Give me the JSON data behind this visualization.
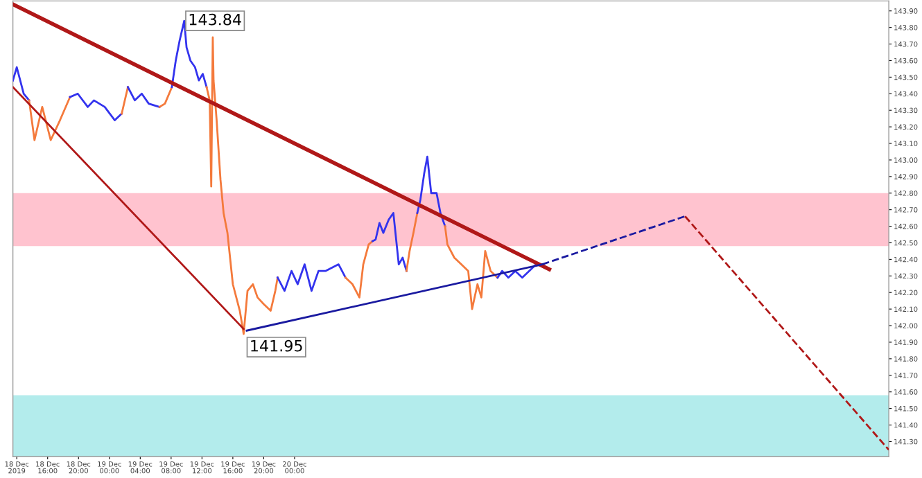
{
  "chart_data": {
    "type": "line",
    "xlim": [
      "2019-12-18T11:30",
      "2019-12-23T05:00"
    ],
    "ylim": [
      141.21,
      143.96
    ],
    "xticks": [
      {
        "value": "2019-12-18T12:00",
        "label": "18 Dec 2019"
      },
      {
        "value": "2019-12-18T16:00",
        "label": "18 Dec 16:00"
      },
      {
        "value": "2019-12-18T20:00",
        "label": "18 Dec 20:00"
      },
      {
        "value": "2019-12-19T00:00",
        "label": "19 Dec 00:00"
      },
      {
        "value": "2019-12-19T04:00",
        "label": "19 Dec 04:00"
      },
      {
        "value": "2019-12-19T08:00",
        "label": "19 Dec 08:00"
      },
      {
        "value": "2019-12-19T12:00",
        "label": "19 Dec 12:00"
      },
      {
        "value": "2019-12-19T16:00",
        "label": "19 Dec 16:00"
      },
      {
        "value": "2019-12-19T20:00",
        "label": "19 Dec 20:00"
      },
      {
        "value": "2019-12-20T00:00",
        "label": "20 Dec 00:00"
      }
    ],
    "yticks": [
      {
        "value": 141.3,
        "label": "141.30"
      },
      {
        "value": 141.4,
        "label": "141.40"
      },
      {
        "value": 141.5,
        "label": "141.50"
      },
      {
        "value": 141.6,
        "label": "141.60"
      },
      {
        "value": 141.7,
        "label": "141.70"
      },
      {
        "value": 141.8,
        "label": "141.80"
      },
      {
        "value": 141.9,
        "label": "141.90"
      },
      {
        "value": 142.0,
        "label": "142.00"
      },
      {
        "value": 142.1,
        "label": "142.10"
      },
      {
        "value": 142.2,
        "label": "142.20"
      },
      {
        "value": 142.3,
        "label": "142.30"
      },
      {
        "value": 142.4,
        "label": "142.40"
      },
      {
        "value": 142.5,
        "label": "142.50"
      },
      {
        "value": 142.6,
        "label": "142.60"
      },
      {
        "value": 142.7,
        "label": "142.70"
      },
      {
        "value": 142.8,
        "label": "142.80"
      },
      {
        "value": 142.9,
        "label": "142.90"
      },
      {
        "value": 143.0,
        "label": "143.00"
      },
      {
        "value": 143.1,
        "label": "143.10"
      },
      {
        "value": 143.2,
        "label": "143.20"
      },
      {
        "value": 143.3,
        "label": "143.30"
      },
      {
        "value": 143.4,
        "label": "143.40"
      },
      {
        "value": 143.5,
        "label": "143.50"
      },
      {
        "value": 143.6,
        "label": "143.60"
      },
      {
        "value": 143.7,
        "label": "143.70"
      },
      {
        "value": 143.8,
        "label": "143.80"
      },
      {
        "value": 143.9,
        "label": "143.90"
      }
    ],
    "grid": false,
    "legend": false,
    "bands": [
      {
        "axis": "y",
        "from": 142.48,
        "to": 142.8,
        "color": "#ffc3cf"
      },
      {
        "axis": "y",
        "from": 141.21,
        "to": 141.58,
        "color": "#b3ecec"
      }
    ],
    "series": [
      {
        "color": "#3333ee",
        "x": [
          "2019-12-18T11:30",
          "2019-12-18T12:00",
          "2019-12-18T12:54",
          "2019-12-18T13:36"
        ],
        "values": [
          143.48,
          143.56,
          143.4,
          143.36
        ]
      },
      {
        "color": "#f47a3c",
        "x": [
          "2019-12-18T13:36",
          "2019-12-18T14:18",
          "2019-12-18T15:18",
          "2019-12-18T16:24",
          "2019-12-18T17:36",
          "2019-12-18T18:54"
        ],
        "values": [
          143.36,
          143.12,
          143.32,
          143.12,
          143.24,
          143.38
        ]
      },
      {
        "color": "#3333ee",
        "x": [
          "2019-12-18T18:54",
          "2019-12-18T19:54",
          "2019-12-18T21:12",
          "2019-12-18T22:00",
          "2019-12-18T23:24",
          "2019-12-19T00:42",
          "2019-12-19T01:36"
        ],
        "values": [
          143.38,
          143.4,
          143.32,
          143.36,
          143.32,
          143.24,
          143.28
        ]
      },
      {
        "color": "#f47a3c",
        "x": [
          "2019-12-19T01:36",
          "2019-12-19T02:24"
        ],
        "values": [
          143.28,
          143.44
        ]
      },
      {
        "color": "#3333ee",
        "x": [
          "2019-12-19T02:24",
          "2019-12-19T03:18",
          "2019-12-19T04:12",
          "2019-12-19T05:06",
          "2019-12-19T06:30"
        ],
        "values": [
          143.44,
          143.36,
          143.4,
          143.34,
          143.32
        ]
      },
      {
        "color": "#f47a3c",
        "x": [
          "2019-12-19T06:30",
          "2019-12-19T07:12",
          "2019-12-19T08:06"
        ],
        "values": [
          143.32,
          143.34,
          143.44
        ]
      },
      {
        "color": "#3333ee",
        "x": [
          "2019-12-19T08:06",
          "2019-12-19T08:36",
          "2019-12-19T09:06",
          "2019-12-19T09:42",
          "2019-12-19T10:00",
          "2019-12-19T10:30",
          "2019-12-19T11:06",
          "2019-12-19T11:36",
          "2019-12-19T12:06",
          "2019-12-19T12:36"
        ],
        "values": [
          143.44,
          143.6,
          143.72,
          143.84,
          143.68,
          143.6,
          143.56,
          143.48,
          143.52,
          143.44
        ]
      },
      {
        "color": "#f47a3c",
        "x": [
          "2019-12-19T12:36",
          "2019-12-19T13:00",
          "2019-12-19T13:12",
          "2019-12-19T13:24",
          "2019-12-19T13:30",
          "2019-12-19T13:54",
          "2019-12-19T14:24",
          "2019-12-19T14:48",
          "2019-12-19T15:18",
          "2019-12-19T16:00",
          "2019-12-19T16:54",
          "2019-12-19T17:24",
          "2019-12-19T17:54",
          "2019-12-19T18:36",
          "2019-12-19T19:12",
          "2019-12-19T20:00",
          "2019-12-19T20:54",
          "2019-12-19T21:30",
          "2019-12-19T21:48"
        ],
        "values": [
          143.44,
          143.36,
          142.84,
          143.74,
          143.48,
          143.24,
          142.88,
          142.68,
          142.56,
          142.25,
          142.09,
          141.95,
          142.21,
          142.25,
          142.17,
          142.13,
          142.09,
          142.21,
          142.29
        ]
      },
      {
        "color": "#3333ee",
        "x": [
          "2019-12-19T21:48",
          "2019-12-19T22:42",
          "2019-12-19T23:36",
          "2019-12-20T00:24",
          "2019-12-20T01:18",
          "2019-12-20T02:12",
          "2019-12-20T03:06",
          "2019-12-20T04:00",
          "2019-12-20T05:42",
          "2019-12-20T06:36"
        ],
        "values": [
          142.29,
          142.21,
          142.33,
          142.25,
          142.37,
          142.21,
          142.33,
          142.33,
          142.37,
          142.29
        ]
      },
      {
        "color": "#f47a3c",
        "x": [
          "2019-12-20T06:36",
          "2019-12-20T07:30",
          "2019-12-20T08:24",
          "2019-12-20T08:54",
          "2019-12-20T09:36",
          "2019-12-20T10:06"
        ],
        "values": [
          142.29,
          142.25,
          142.17,
          142.37,
          142.49,
          142.51
        ]
      },
      {
        "color": "#3333ee",
        "x": [
          "2019-12-20T10:06",
          "2019-12-20T10:30",
          "2019-12-20T11:00",
          "2019-12-20T11:30",
          "2019-12-20T12:12",
          "2019-12-20T12:48",
          "2019-12-20T13:30",
          "2019-12-20T14:00",
          "2019-12-20T14:30"
        ],
        "values": [
          142.51,
          142.52,
          142.62,
          142.56,
          142.64,
          142.68,
          142.37,
          142.41,
          142.33
        ]
      },
      {
        "color": "#f47a3c",
        "x": [
          "2019-12-20T14:30",
          "2019-12-20T14:54",
          "2019-12-20T15:24",
          "2019-12-20T15:54"
        ],
        "values": [
          142.33,
          142.45,
          142.56,
          142.68
        ]
      },
      {
        "color": "#3333ee",
        "x": [
          "2019-12-20T15:54",
          "2019-12-20T16:18",
          "2019-12-20T16:48",
          "2019-12-20T17:12",
          "2019-12-20T17:42",
          "2019-12-20T18:24",
          "2019-12-20T18:54",
          "2019-12-20T19:30"
        ],
        "values": [
          142.68,
          142.76,
          142.92,
          143.02,
          142.8,
          142.8,
          142.68,
          142.6
        ]
      },
      {
        "color": "#f47a3c",
        "x": [
          "2019-12-20T19:30",
          "2019-12-20T19:48",
          "2019-12-20T20:42",
          "2019-12-20T21:36",
          "2019-12-20T22:30",
          "2019-12-20T23:00",
          "2019-12-20T23:42",
          "2019-12-21T00:12",
          "2019-12-21T00:42",
          "2019-12-21T01:24",
          "2019-12-21T02:18"
        ],
        "values": [
          142.6,
          142.49,
          142.41,
          142.37,
          142.33,
          142.1,
          142.25,
          142.17,
          142.45,
          142.33,
          142.29
        ]
      },
      {
        "color": "#3333ee",
        "x": [
          "2019-12-21T02:18",
          "2019-12-21T02:54",
          "2019-12-21T03:42",
          "2019-12-21T04:36",
          "2019-12-21T05:30",
          "2019-12-21T06:24",
          "2019-12-21T07:18",
          "2019-12-21T08:06"
        ],
        "values": [
          142.29,
          142.33,
          142.29,
          142.33,
          142.29,
          142.33,
          142.37,
          142.37
        ]
      },
      {
        "color": "#b01818",
        "x": [
          "2019-12-18T11:30",
          "2019-12-21T09:00"
        ],
        "values": [
          143.94,
          142.34
        ]
      },
      {
        "color": "#b01818",
        "x": [
          "2019-12-18T11:30",
          "2019-12-19T17:24"
        ],
        "values": [
          143.44,
          141.98
        ]
      },
      {
        "color": "#1a1aa0",
        "x": [
          "2019-12-19T17:48",
          "2019-12-21T08:06"
        ],
        "values": [
          141.97,
          142.37
        ]
      },
      {
        "color": "#1a1aa0",
        "line_style": "dashed",
        "x": [
          "2019-12-21T08:06",
          "2019-12-22T02:36"
        ],
        "values": [
          142.37,
          142.66
        ]
      },
      {
        "color": "#b01818",
        "line_style": "dashed",
        "x": [
          "2019-12-22T02:36",
          "2019-12-23T05:00"
        ],
        "values": [
          142.66,
          141.25
        ]
      }
    ],
    "annotations": [
      {
        "text": "143.84",
        "x": "2019-12-19T09:42",
        "y": 143.84
      },
      {
        "text": "141.95",
        "x": "2019-12-19T17:24",
        "y": 141.95
      }
    ]
  }
}
